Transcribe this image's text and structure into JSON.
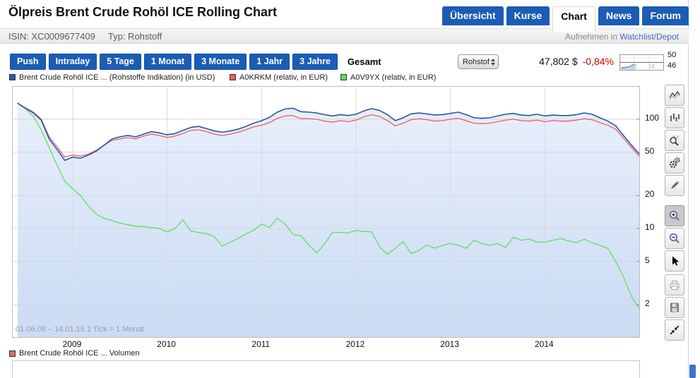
{
  "header": {
    "title": "Ölpreis Brent Crude Rohöl ICE Rolling Chart",
    "tabs": [
      {
        "label": "Übersicht",
        "active": false
      },
      {
        "label": "Kurse",
        "active": false
      },
      {
        "label": "Chart",
        "active": true
      },
      {
        "label": "News",
        "active": false
      },
      {
        "label": "Forum",
        "active": false
      }
    ],
    "isin_label": "ISIN: XC0009677409",
    "type_label": "Typ: Rohstoff",
    "watchlist_prefix": "Aufnehmen in",
    "watchlist_link": "Watchlist/Depot"
  },
  "toolbar": {
    "periods": [
      "Push",
      "Intraday",
      "5 Tage",
      "1 Monat",
      "3 Monate",
      "1 Jahr",
      "3 Jahre"
    ],
    "active_period": "Gesamt",
    "dropdown_value": "Rohstoffe I",
    "price": "47,802 $",
    "change": "-0,84%",
    "mini_chart": {
      "high": "50",
      "low": "46",
      "tick1": "13",
      "tick2": "18"
    }
  },
  "colors": {
    "accent_blue": "#1b5cb5",
    "change_red": "#cc0000",
    "series_blue": "#2c55a6",
    "series_red": "#ef5c5c",
    "series_green": "#5fdf5f",
    "fill_top": "#e8effb",
    "fill_bottom": "#cadbf4"
  },
  "chart_data": {
    "type": "line",
    "title": "Ölpreis Brent Crude Rohöl ICE Rolling Chart",
    "x_start": "2008-06",
    "x_end": "2015-01",
    "tick_interval": "1 Monat",
    "annotation": "01.06.08 – 14.01.15   1 Tick = 1 Monat",
    "x_tick_labels": [
      "2009",
      "2010",
      "2011",
      "2012",
      "2013",
      "2014"
    ],
    "y_scale": "log",
    "y_tick_values": [
      100,
      50,
      20,
      10,
      5,
      2
    ],
    "grid": true,
    "legend_position": "top",
    "legend": [
      {
        "label": "Brent Crude Rohöl ICE ... (Rohstoffe Indikation) (in USD)",
        "color": "#2c55a6"
      },
      {
        "label": "A0KRKM (relativ, in EUR)",
        "color": "#ef5c5c"
      },
      {
        "label": "A0V9YX (relativ, in EUR)",
        "color": "#5fdf5f"
      }
    ],
    "series": [
      {
        "name": "Brent Crude Rohöl ICE (in USD)",
        "color": "#2c55a6",
        "fill_under": true,
        "values": [
          140,
          126,
          114,
          98,
          66,
          53,
          42,
          45,
          44,
          47,
          51,
          58,
          66,
          69,
          71,
          69,
          73,
          77,
          75,
          72,
          74,
          79,
          84,
          86,
          82,
          78,
          76,
          78,
          81,
          86,
          92,
          97,
          104,
          116,
          124,
          126,
          117,
          116,
          114,
          110,
          107,
          110,
          108,
          111,
          119,
          125,
          120,
          110,
          97,
          103,
          112,
          114,
          112,
          109,
          110,
          113,
          116,
          110,
          103,
          102,
          103,
          107,
          111,
          113,
          109,
          108,
          111,
          107,
          109,
          108,
          108,
          110,
          114,
          111,
          103,
          96,
          87,
          71,
          58,
          48
        ]
      },
      {
        "name": "A0KRKM (relativ, in EUR)",
        "color": "#ef5c5c",
        "fill_under": false,
        "values": [
          140,
          127,
          116,
          100,
          69,
          56,
          45,
          47,
          46,
          48,
          52,
          58,
          64,
          66,
          68,
          66,
          70,
          73,
          71,
          68,
          70,
          74,
          79,
          80,
          77,
          73,
          71,
          73,
          76,
          80,
          85,
          88,
          93,
          102,
          107,
          108,
          101,
          101,
          100,
          96,
          94,
          97,
          95,
          98,
          105,
          110,
          106,
          97,
          87,
          92,
          99,
          101,
          99,
          96,
          97,
          100,
          102,
          97,
          92,
          91,
          92,
          95,
          98,
          100,
          97,
          96,
          98,
          95,
          97,
          96,
          96,
          98,
          101,
          99,
          93,
          88,
          81,
          67,
          55,
          46
        ]
      },
      {
        "name": "A0V9YX (relativ, in EUR)",
        "color": "#5fdf5f",
        "fill_under": false,
        "values": [
          140,
          124,
          106,
          80,
          55,
          38,
          27,
          23,
          20,
          16,
          13.5,
          12.4,
          11.8,
          11.2,
          10.8,
          10.5,
          10.4,
          10.2,
          10,
          9.3,
          10,
          12,
          9.5,
          9.2,
          9,
          8.4,
          6.9,
          7.5,
          8.1,
          8.9,
          9.6,
          11,
          10.2,
          12.4,
          11,
          8.8,
          8.6,
          7.1,
          6,
          7.2,
          9.2,
          9.2,
          9.1,
          9.6,
          9.4,
          9.3,
          6.8,
          5.8,
          6.6,
          7.6,
          5.9,
          6.3,
          7.1,
          6.6,
          7,
          7.3,
          7,
          6.6,
          7.8,
          7.3,
          7,
          7.3,
          6.7,
          8.3,
          7.8,
          8,
          7.5,
          7.5,
          7.8,
          8.1,
          7.7,
          7.4,
          8,
          7.4,
          7,
          6.6,
          5,
          3.6,
          2.4,
          1.85
        ]
      }
    ]
  },
  "sidebar": {
    "tools": [
      {
        "name": "line-chart-tool",
        "icon": "line-chart-icon",
        "group": 1,
        "active": false
      },
      {
        "name": "bar-chart-tool",
        "icon": "bar-chart-icon",
        "group": 1,
        "active": false
      },
      {
        "name": "chart-analysis-tool",
        "icon": "chart-magnifier-icon",
        "group": 1,
        "active": false
      },
      {
        "name": "chart-settings-tool",
        "icon": "gears-icon",
        "group": 1,
        "active": false
      },
      {
        "name": "draw-tool",
        "icon": "pencil-icon",
        "group": 1,
        "active": false
      },
      {
        "name": "zoom-in-tool",
        "icon": "zoom-in-icon",
        "group": 2,
        "active": true
      },
      {
        "name": "zoom-out-tool",
        "icon": "zoom-out-icon",
        "group": 2,
        "active": false
      },
      {
        "name": "pointer-tool",
        "icon": "cursor-icon",
        "group": 2,
        "active": false
      },
      {
        "name": "print-tool",
        "icon": "printer-icon",
        "group": 3,
        "active": false
      },
      {
        "name": "save-tool",
        "icon": "save-icon",
        "group": 3,
        "active": false
      },
      {
        "name": "collapse-tool",
        "icon": "collapse-icon",
        "group": 3,
        "active": false
      }
    ]
  },
  "volume": {
    "legend_label": "Brent Crude Rohöl ICE ... Volumen",
    "legend_color": "#d96b6b"
  }
}
